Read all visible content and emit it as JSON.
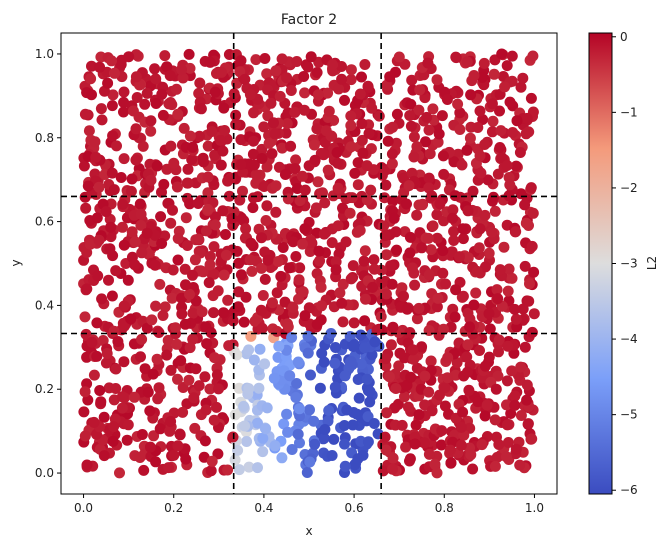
{
  "chart_data": {
    "type": "scatter",
    "title": "Factor 2",
    "xlabel": "x",
    "ylabel": "y",
    "xlim": [
      -0.05,
      1.05
    ],
    "ylim": [
      -0.05,
      1.05
    ],
    "xticks": [
      0.0,
      0.2,
      0.4,
      0.6,
      0.8,
      1.0
    ],
    "xtick_labels": [
      "0.0",
      "0.2",
      "0.4",
      "0.6",
      "0.8",
      "1.0"
    ],
    "yticks": [
      0.0,
      0.2,
      0.4,
      0.6,
      0.8,
      1.0
    ],
    "ytick_labels": [
      "0.0",
      "0.2",
      "0.4",
      "0.6",
      "0.8",
      "1.0"
    ],
    "grid": false,
    "colormap": "coolwarm",
    "colorbar": {
      "label": "L2",
      "range": [
        -6.05,
        0.05
      ],
      "ticks": [
        0,
        -1,
        -2,
        -3,
        -4,
        -5,
        -6
      ],
      "tick_labels": [
        "0",
        "−1",
        "−2",
        "−3",
        "−4",
        "−5",
        "−6"
      ]
    },
    "reference_lines": {
      "vertical_x": [
        0.333,
        0.66
      ],
      "horizontal_y": [
        0.333,
        0.66
      ],
      "style": "dashed",
      "color": "#000000"
    },
    "points_description": {
      "count_approx": 2000,
      "distribution": "uniform over [0,1]x[0,1]",
      "value_background": [
        0.0,
        -0.3
      ],
      "low_region_x": [
        0.333,
        0.66
      ],
      "low_region_y": [
        0.0,
        0.333
      ],
      "low_region_value_left": -3.0,
      "low_region_value_right": -6.0
    }
  }
}
